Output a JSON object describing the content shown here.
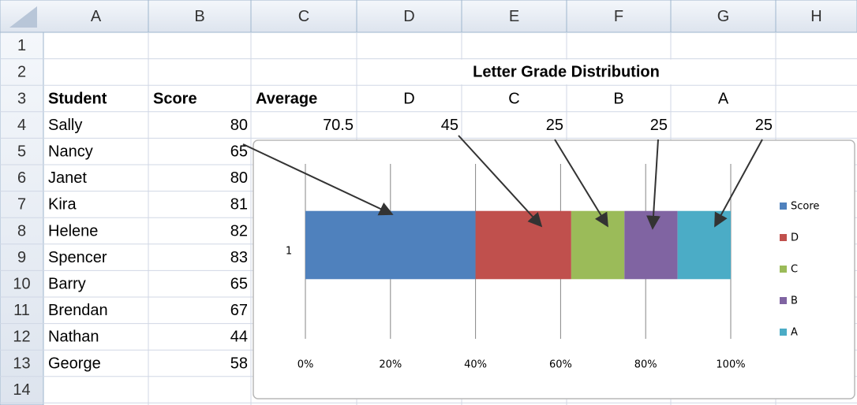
{
  "spreadsheet": {
    "columns": [
      "A",
      "B",
      "C",
      "D",
      "E",
      "F",
      "G",
      "H"
    ],
    "row_numbers": [
      1,
      2,
      3,
      4,
      5,
      6,
      7,
      8,
      9,
      10,
      11,
      12,
      13,
      14
    ],
    "rows": [
      [
        null,
        null,
        null,
        null,
        null,
        null,
        null,
        null
      ],
      [
        null,
        null,
        null,
        "Letter Grade Distribution",
        null,
        null,
        null,
        null
      ],
      [
        "Student",
        "Score",
        "Average",
        "D",
        "C",
        "B",
        "A",
        null
      ],
      [
        "Sally",
        80,
        70.5,
        45,
        25,
        25,
        25,
        null
      ],
      [
        "Nancy",
        65,
        null,
        null,
        null,
        null,
        null,
        null
      ],
      [
        "Janet",
        80,
        null,
        null,
        null,
        null,
        null,
        null
      ],
      [
        "Kira",
        81,
        null,
        null,
        null,
        null,
        null,
        null
      ],
      [
        "Helene",
        82,
        null,
        null,
        null,
        null,
        null,
        null
      ],
      [
        "Spencer",
        83,
        null,
        null,
        null,
        null,
        null,
        null
      ],
      [
        "Barry",
        65,
        null,
        null,
        null,
        null,
        null,
        null
      ],
      [
        "Brendan",
        67,
        null,
        null,
        null,
        null,
        null,
        null
      ],
      [
        "Nathan",
        44,
        null,
        null,
        null,
        null,
        null,
        null
      ],
      [
        "George",
        58,
        null,
        null,
        null,
        null,
        null,
        null
      ],
      [
        null,
        null,
        null,
        null,
        null,
        null,
        null,
        null
      ]
    ]
  },
  "chart_data": {
    "type": "bar",
    "stacked_percent": true,
    "orientation": "horizontal",
    "categories": [
      "1"
    ],
    "series": [
      {
        "name": "Score",
        "color": "#4f81bd",
        "values": [
          80
        ]
      },
      {
        "name": "D",
        "color": "#c0504d",
        "values": [
          45
        ]
      },
      {
        "name": "C",
        "color": "#9bbb59",
        "values": [
          25
        ]
      },
      {
        "name": "B",
        "color": "#8064a2",
        "values": [
          25
        ]
      },
      {
        "name": "A",
        "color": "#4bacc6",
        "values": [
          25
        ]
      }
    ],
    "xlim": [
      0,
      100
    ],
    "xticks": [
      {
        "value": 0,
        "label": "0%"
      },
      {
        "value": 20,
        "label": "20%"
      },
      {
        "value": 40,
        "label": "40%"
      },
      {
        "value": 60,
        "label": "60%"
      },
      {
        "value": 80,
        "label": "80%"
      },
      {
        "value": 100,
        "label": "100%"
      }
    ],
    "grid": true,
    "legend": "right"
  }
}
